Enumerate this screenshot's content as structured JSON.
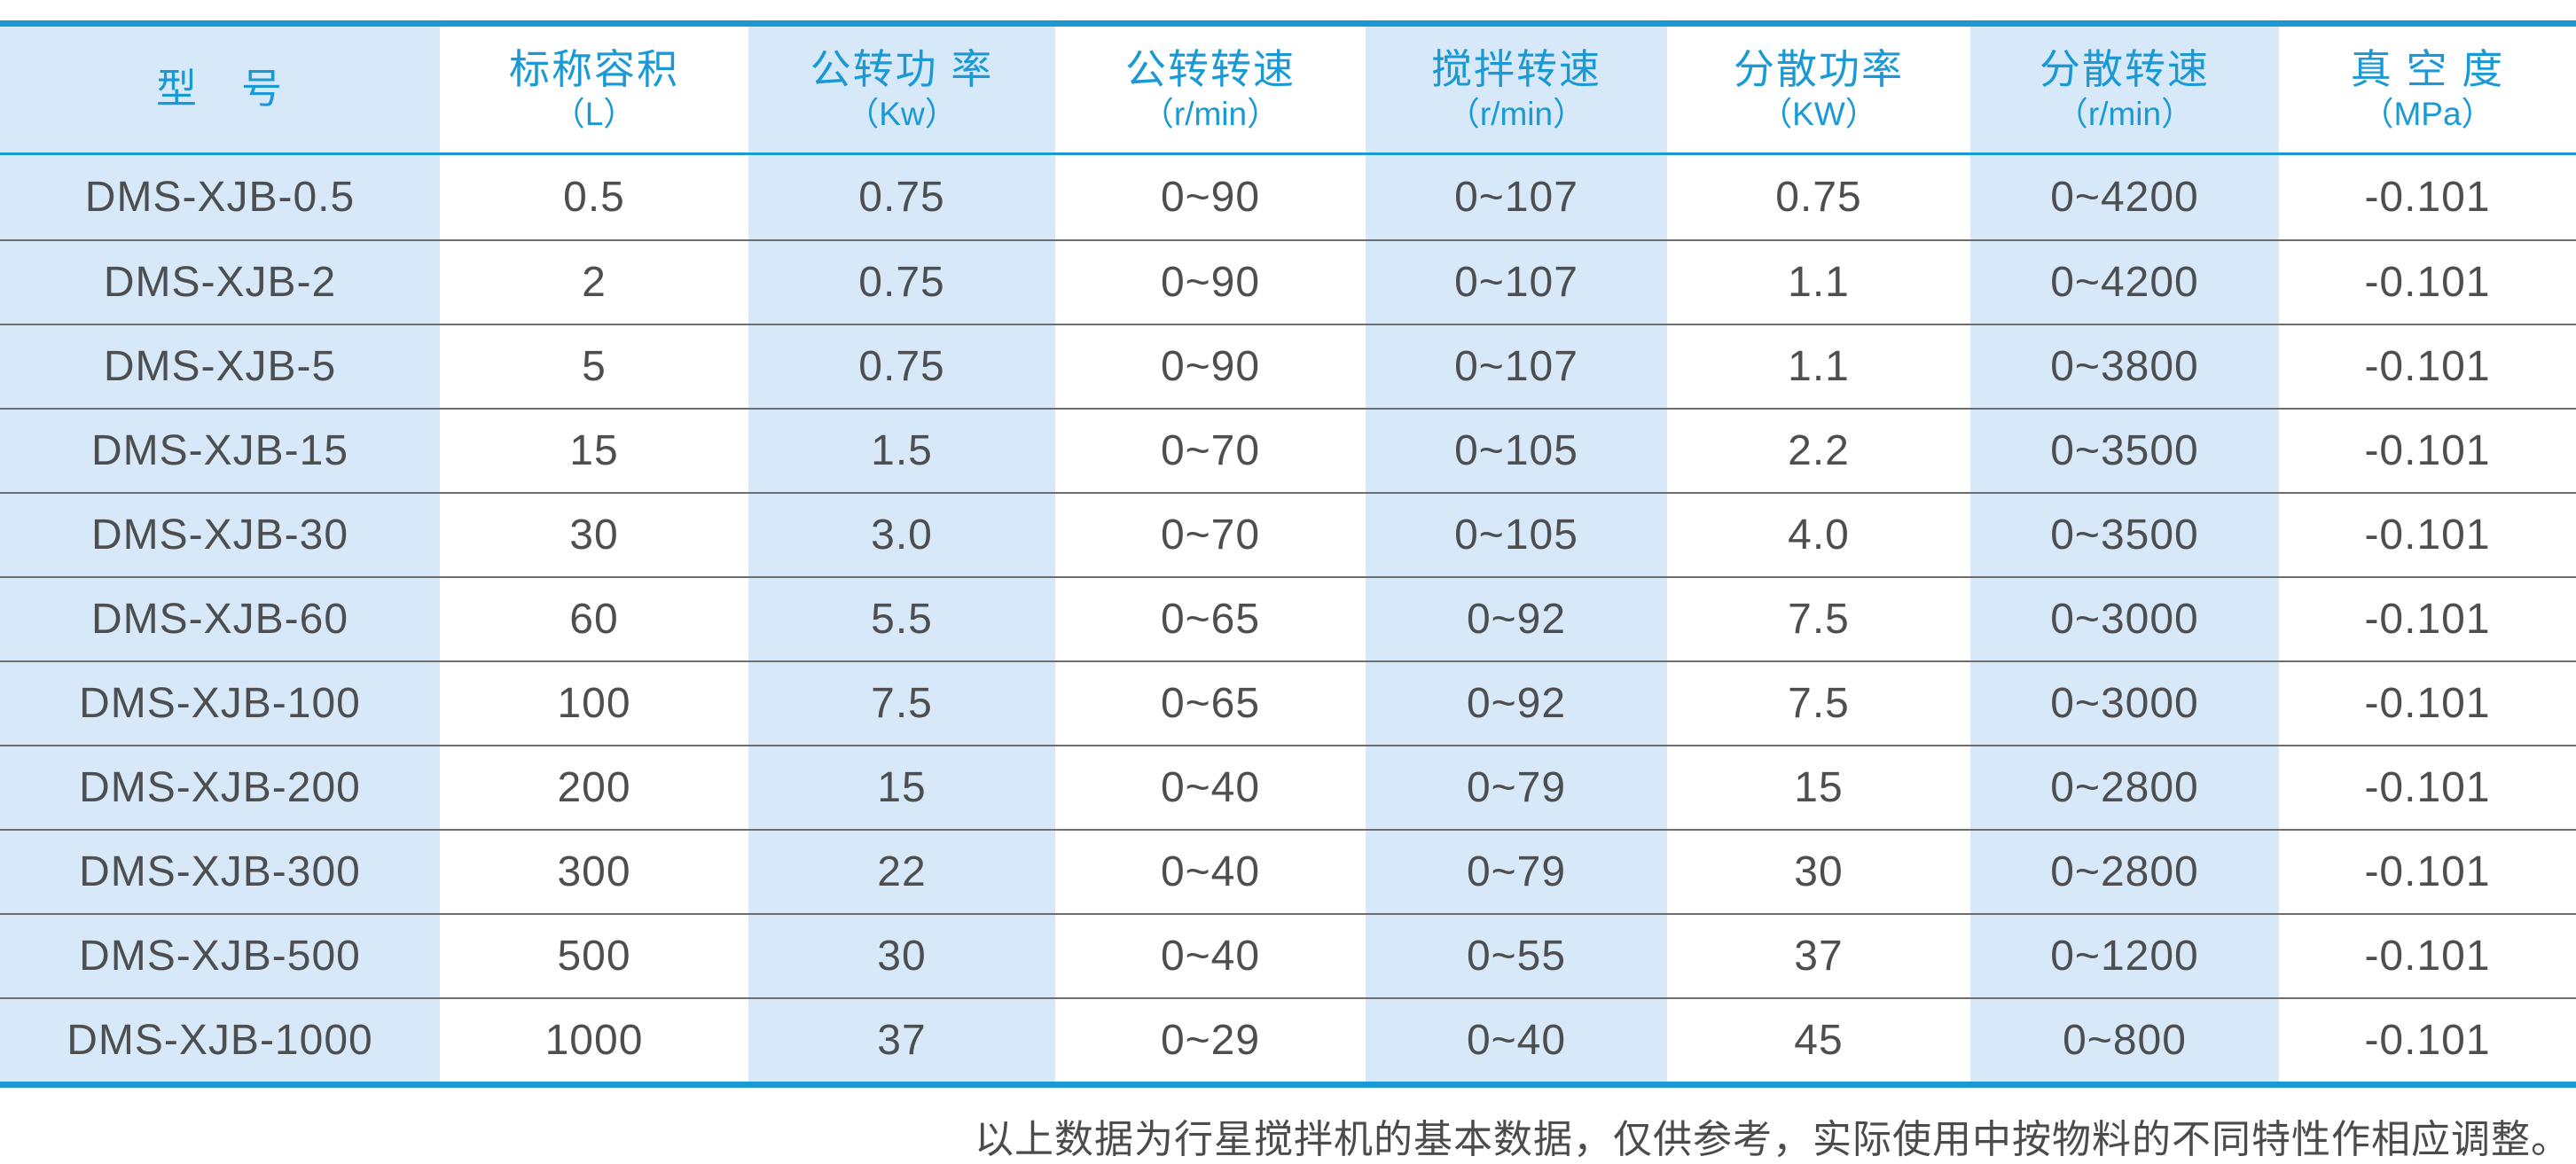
{
  "colors": {
    "accent_blue": "#1a99d5",
    "stripe_light_blue": "#d7e9f8",
    "body_text": "#4d4e50",
    "row_separator": "#6d6e70"
  },
  "table": {
    "columns": [
      {
        "title": "型　号",
        "unit": ""
      },
      {
        "title": "标称容积",
        "unit": "（L）"
      },
      {
        "title": "公转功 率",
        "unit": "（Kw）"
      },
      {
        "title": "公转转速",
        "unit": "（r/min）"
      },
      {
        "title": "搅拌转速",
        "unit": "（r/min）"
      },
      {
        "title": "分散功率",
        "unit": "（KW）"
      },
      {
        "title": "分散转速",
        "unit": "（r/min）"
      },
      {
        "title": "真 空 度",
        "unit": "（MPa）"
      }
    ],
    "rows": [
      [
        "DMS-XJB-0.5",
        "0.5",
        "0.75",
        "0~90",
        "0~107",
        "0.75",
        "0~4200",
        "-0.101"
      ],
      [
        "DMS-XJB-2",
        "2",
        "0.75",
        "0~90",
        "0~107",
        "1.1",
        "0~4200",
        "-0.101"
      ],
      [
        "DMS-XJB-5",
        "5",
        "0.75",
        "0~90",
        "0~107",
        "1.1",
        "0~3800",
        "-0.101"
      ],
      [
        "DMS-XJB-15",
        "15",
        "1.5",
        "0~70",
        "0~105",
        "2.2",
        "0~3500",
        "-0.101"
      ],
      [
        "DMS-XJB-30",
        "30",
        "3.0",
        "0~70",
        "0~105",
        "4.0",
        "0~3500",
        "-0.101"
      ],
      [
        "DMS-XJB-60",
        "60",
        "5.5",
        "0~65",
        "0~92",
        "7.5",
        "0~3000",
        "-0.101"
      ],
      [
        "DMS-XJB-100",
        "100",
        "7.5",
        "0~65",
        "0~92",
        "7.5",
        "0~3000",
        "-0.101"
      ],
      [
        "DMS-XJB-200",
        "200",
        "15",
        "0~40",
        "0~79",
        "15",
        "0~2800",
        "-0.101"
      ],
      [
        "DMS-XJB-300",
        "300",
        "22",
        "0~40",
        "0~79",
        "30",
        "0~2800",
        "-0.101"
      ],
      [
        "DMS-XJB-500",
        "500",
        "30",
        "0~40",
        "0~55",
        "37",
        "0~1200",
        "-0.101"
      ],
      [
        "DMS-XJB-1000",
        "1000",
        "37",
        "0~29",
        "0~40",
        "45",
        "0~800",
        "-0.101"
      ]
    ]
  },
  "footer": {
    "note": "以上数据为行星搅拌机的基本数据，仅供参考，实际使用中按物料的不同特性作相应调整。"
  }
}
